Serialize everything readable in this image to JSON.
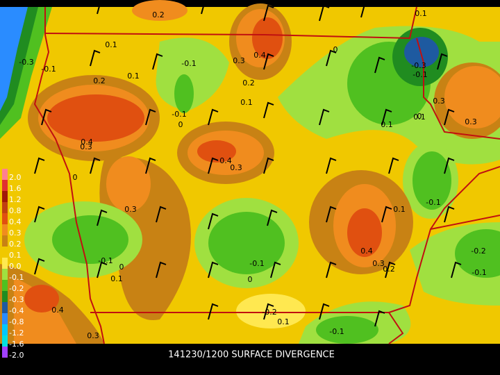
{
  "caption": "141230/1200 SURFACE DIVERGENCE",
  "legend": {
    "labels": [
      "2.0",
      "1.6",
      "1.2",
      "0.8",
      "0.4",
      "0.3",
      "0.2",
      "0.1",
      "0.0",
      "-0.1",
      "-0.2",
      "-0.3",
      "-0.4",
      "-0.8",
      "-1.2",
      "-1.6",
      "-2.0"
    ],
    "colors": [
      "#ff8090",
      "#e03030",
      "#a01808",
      "#c04010",
      "#e05010",
      "#f08c1e",
      "#c88214",
      "#f0c800",
      "#ffe850",
      "#a0e040",
      "#50c020",
      "#208c20",
      "#1e5aa0",
      "#2a8cff",
      "#00c8ff",
      "#00e0e0",
      "#a040ff"
    ]
  },
  "contour_labels": [
    "0.2",
    "0.1",
    "-0.1",
    "0.1",
    "0.4",
    "0.3",
    "0.2",
    "0",
    "-0.3",
    "-0.3",
    "-0.1",
    "0.2",
    "-0.1",
    "0",
    "0.1",
    "0.4",
    "0.3",
    "0.4",
    "0.3",
    "0",
    "0.1",
    "0.3",
    "-0.1",
    "0.1",
    "0.3",
    "-0.1",
    "0",
    "0.1",
    "-0.1",
    "0",
    "0.4",
    "0.3",
    "0.2",
    "0.1",
    "-0.2",
    "-0.1",
    "0.4",
    "0.3",
    "0",
    "-0.2",
    "0.1",
    "-0.1",
    "-0.1",
    "0.3",
    "0.1"
  ]
}
